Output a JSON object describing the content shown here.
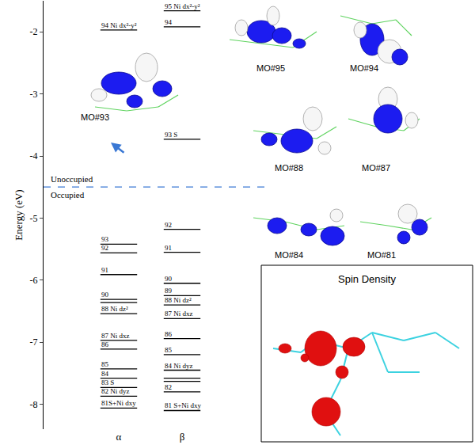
{
  "chart_data": {
    "type": "energy_levels",
    "y_label": "Energy (eV)",
    "ylim": [
      -8.4,
      -1.5
    ],
    "yticks": [
      -8,
      -7,
      -6,
      -5,
      -4,
      -3,
      -2
    ],
    "categories": [
      "α",
      "β"
    ],
    "levels": [
      [
        {
          "energy": -1.97,
          "label": "94 Ni dx²-y²"
        },
        {
          "energy": -5.42,
          "label": "93"
        },
        {
          "energy": -5.56,
          "label": "92"
        },
        {
          "energy": -5.91,
          "label": "91"
        },
        {
          "energy": -6.31,
          "label": "90"
        },
        {
          "energy": -6.36
        },
        {
          "energy": -6.54,
          "label": "88 Ni dz²"
        },
        {
          "energy": -6.97,
          "label": "87 Ni dxz"
        },
        {
          "energy": -7.11,
          "label": "86"
        },
        {
          "energy": -7.43,
          "label": "85"
        },
        {
          "energy": -7.58,
          "label": "84"
        },
        {
          "energy": -7.73,
          "label": "83 S"
        },
        {
          "energy": -7.87,
          "label": "82 Ni dyz"
        },
        {
          "energy": -8.06,
          "label": "81S+Ni dxy"
        }
      ],
      [
        {
          "energy": -1.66,
          "label": "95 Ni dx²-y²"
        },
        {
          "energy": -1.92,
          "label": "94"
        },
        {
          "energy": -3.73,
          "label": "93 S"
        },
        {
          "energy": -5.18,
          "label": "92"
        },
        {
          "energy": -5.55,
          "label": "91"
        },
        {
          "energy": -6.05,
          "label": "90"
        },
        {
          "energy": -6.25,
          "label": "89"
        },
        {
          "energy": -6.4,
          "label": "88 Ni dz²"
        },
        {
          "energy": -6.62,
          "label": "87 Ni dxz"
        },
        {
          "energy": -6.94,
          "label": "86"
        },
        {
          "energy": -7.2,
          "label": "85"
        },
        {
          "energy": -7.45,
          "label": "84 Ni dyz"
        },
        {
          "energy": -7.58
        },
        {
          "energy": -7.63
        },
        {
          "energy": -7.8,
          "label": "82"
        },
        {
          "energy": -8.1,
          "label": "81 S+Ni dxy"
        }
      ]
    ],
    "boundary": {
      "energy": -4.5,
      "above": "Unoccupied",
      "below": "Occupied"
    },
    "orbital_images": [
      "MO#93",
      "MO#95",
      "MO#94",
      "MO#88",
      "MO#87",
      "MO#84",
      "MO#81"
    ],
    "inset": {
      "title": "Spin Density"
    }
  }
}
